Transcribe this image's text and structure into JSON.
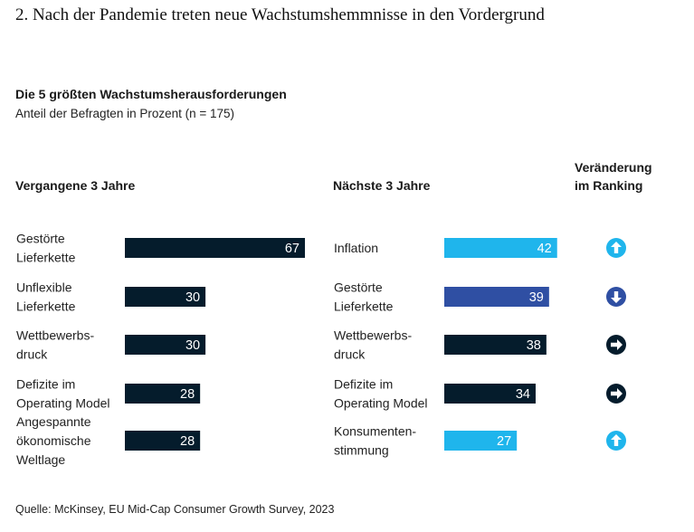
{
  "page_title": "2. Nach der Pandemie treten neue Wachstumshemmnisse in den Vordergrund",
  "chart_data": {
    "type": "bar",
    "title": "Die 5 größten Wachstumsherausforderungen",
    "subtitle": "Anteil der Befragten in Prozent (n = 175)",
    "orientation": "horizontal",
    "panels": [
      {
        "heading": "Vergangene 3 Jahre",
        "categories": [
          [
            "Gestörte",
            "Lieferkette"
          ],
          [
            "Unflexible",
            "Lieferkette"
          ],
          [
            "Wettbewerbs-",
            "druck"
          ],
          [
            "Defizite im",
            "Operating Model"
          ],
          [
            "Angespannte",
            "ökonomische",
            "Weltlage"
          ]
        ],
        "values": [
          67,
          30,
          30,
          28,
          28
        ],
        "colors": [
          "#051c2c",
          "#051c2c",
          "#051c2c",
          "#051c2c",
          "#051c2c"
        ]
      },
      {
        "heading": "Nächste 3 Jahre",
        "categories": [
          [
            "Inflation"
          ],
          [
            "Gestörte",
            "Lieferkette"
          ],
          [
            "Wettbewerbs-",
            "druck"
          ],
          [
            "Defizite im",
            "Operating Model"
          ],
          [
            "Konsumenten-",
            "stimmung"
          ]
        ],
        "values": [
          42,
          39,
          38,
          34,
          27
        ],
        "colors": [
          "#1fb5ec",
          "#2f4fa3",
          "#051c2c",
          "#051c2c",
          "#1fb5ec"
        ]
      }
    ],
    "ranking_change": {
      "heading": [
        "Veränderung",
        "im Ranking"
      ],
      "items": [
        {
          "direction": "up",
          "color": "#1fb5ec"
        },
        {
          "direction": "down",
          "color": "#2f4fa3"
        },
        {
          "direction": "right",
          "color": "#051c2c"
        },
        {
          "direction": "right",
          "color": "#051c2c"
        },
        {
          "direction": "up",
          "color": "#1fb5ec"
        }
      ]
    }
  },
  "source": "Quelle: McKinsey, EU Mid-Cap Consumer Growth Survey, 2023"
}
